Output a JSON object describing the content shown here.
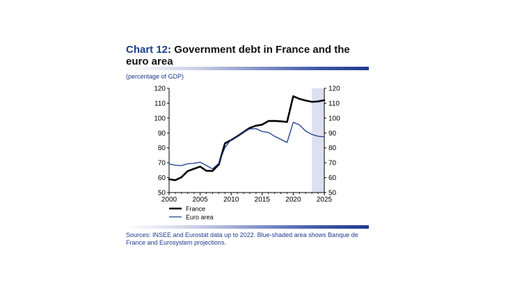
{
  "header": {
    "title_number": "Chart 12",
    "title_rest": ": Government debt in France and the euro area",
    "unit": "(percentage of GDP)"
  },
  "footer": {
    "source": "Sources: INSEE and Eurostat data up to 2022. Blue-shaded area shows Banque de  France and Eurosystem projections."
  },
  "chart_data": {
    "type": "line",
    "xlim": [
      2000,
      2025
    ],
    "ylim": [
      50,
      120
    ],
    "x_ticks": [
      2000,
      2005,
      2010,
      2015,
      2020,
      2025
    ],
    "y_ticks": [
      50,
      60,
      70,
      80,
      90,
      100,
      110,
      120
    ],
    "y_ticks_right": [
      50,
      60,
      70,
      80,
      90,
      100,
      110,
      120
    ],
    "projection_shading": {
      "from": 2023,
      "to": 2025,
      "color": "#dde0f0"
    },
    "grid": false,
    "legend_position": "bottom-left",
    "series": [
      {
        "name": "France",
        "color": "#000000",
        "stroke": "thick",
        "x": [
          2000,
          2001,
          2002,
          2003,
          2004,
          2005,
          2006,
          2007,
          2008,
          2009,
          2010,
          2011,
          2012,
          2013,
          2014,
          2015,
          2016,
          2017,
          2018,
          2019,
          2020,
          2021,
          2022,
          2023,
          2024,
          2025
        ],
        "y": [
          58.9,
          58.3,
          60.3,
          64.4,
          65.9,
          67.4,
          64.6,
          64.5,
          68.8,
          83.0,
          85.3,
          87.8,
          90.6,
          93.4,
          94.9,
          95.6,
          98.0,
          98.1,
          97.8,
          97.4,
          114.7,
          112.9,
          111.8,
          110.9,
          111.2,
          112.0
        ]
      },
      {
        "name": "Euro area",
        "color": "#1d3a8c",
        "stroke": "thin",
        "x": [
          2000,
          2001,
          2002,
          2003,
          2004,
          2005,
          2006,
          2007,
          2008,
          2009,
          2010,
          2011,
          2012,
          2013,
          2014,
          2015,
          2016,
          2017,
          2018,
          2019,
          2020,
          2021,
          2022,
          2023,
          2024,
          2025
        ],
        "y": [
          69.2,
          68.3,
          68.1,
          69.3,
          69.6,
          70.4,
          68.2,
          65.9,
          69.6,
          80.2,
          85.6,
          87.6,
          90.7,
          92.7,
          92.9,
          91.0,
          90.3,
          87.8,
          85.7,
          83.6,
          97.2,
          95.4,
          91.3,
          89.0,
          87.8,
          87.4
        ]
      }
    ]
  }
}
